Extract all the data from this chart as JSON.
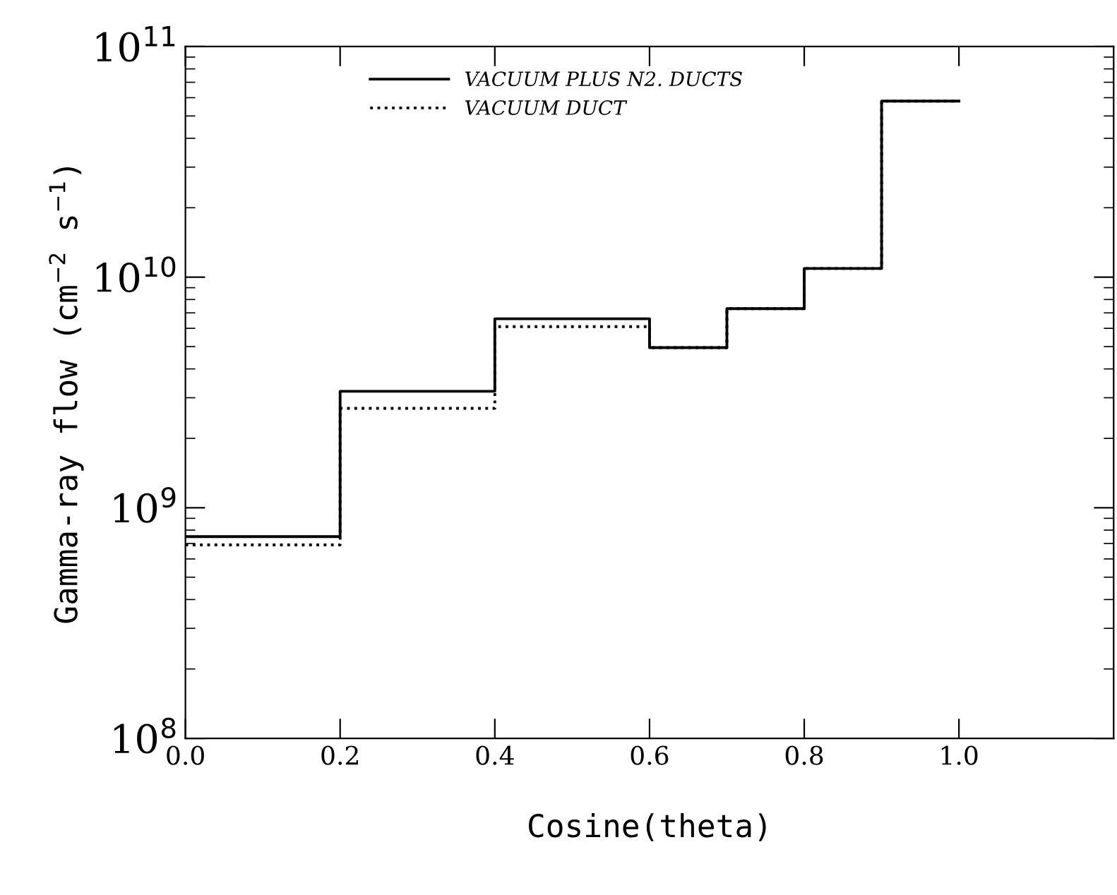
{
  "chart_data": {
    "type": "step",
    "xlabel": "Cosine(theta)",
    "ylabel": "Gamma-ray flow (cm$^{−2}$ s$^{−1}$)",
    "log": "y",
    "xlim": [
      0,
      1.2
    ],
    "xticks": [
      {
        "value": 0,
        "label": "0.0"
      },
      {
        "value": 0.2,
        "label": "0.2"
      },
      {
        "value": 0.4,
        "label": "0.4"
      },
      {
        "value": 0.6,
        "label": "0.6"
      },
      {
        "value": 0.8,
        "label": "0.8"
      },
      {
        "value": 1.0,
        "label": "1.0"
      }
    ],
    "ylim": [
      100000000.0,
      100000000000.0
    ],
    "yticks": [
      {
        "value": 100000000.0,
        "label": "10$^{8}$"
      },
      {
        "value": 1000000000.0,
        "label": "10$^{9}$"
      },
      {
        "value": 10000000000.0,
        "label": "10$^{10}$"
      },
      {
        "value": 100000000000.0,
        "label": "10$^{11}$"
      }
    ],
    "grid": false,
    "legend": "top",
    "x": [
      0,
      0.2,
      0.4,
      0.6,
      0.7,
      0.8,
      0.9,
      1.0
    ],
    "series": [
      {
        "name": "VACUUM PLUS N2. DUCTS",
        "color": "#000000",
        "line_style": "solid",
        "values": [
          750000000.0,
          3200000000.0,
          6600000000.0,
          4950000000.0,
          7300000000.0,
          10900000000.0,
          58000000000.0,
          58000000000.0
        ]
      },
      {
        "name": "VACUUM DUCT",
        "color": "#000000",
        "line_style": "dotted",
        "values": [
          690000000.0,
          2700000000.0,
          6100000000.0,
          4950000000.0,
          7300000000.0,
          10900000000.0,
          58000000000.0,
          58000000000.0
        ]
      }
    ]
  }
}
